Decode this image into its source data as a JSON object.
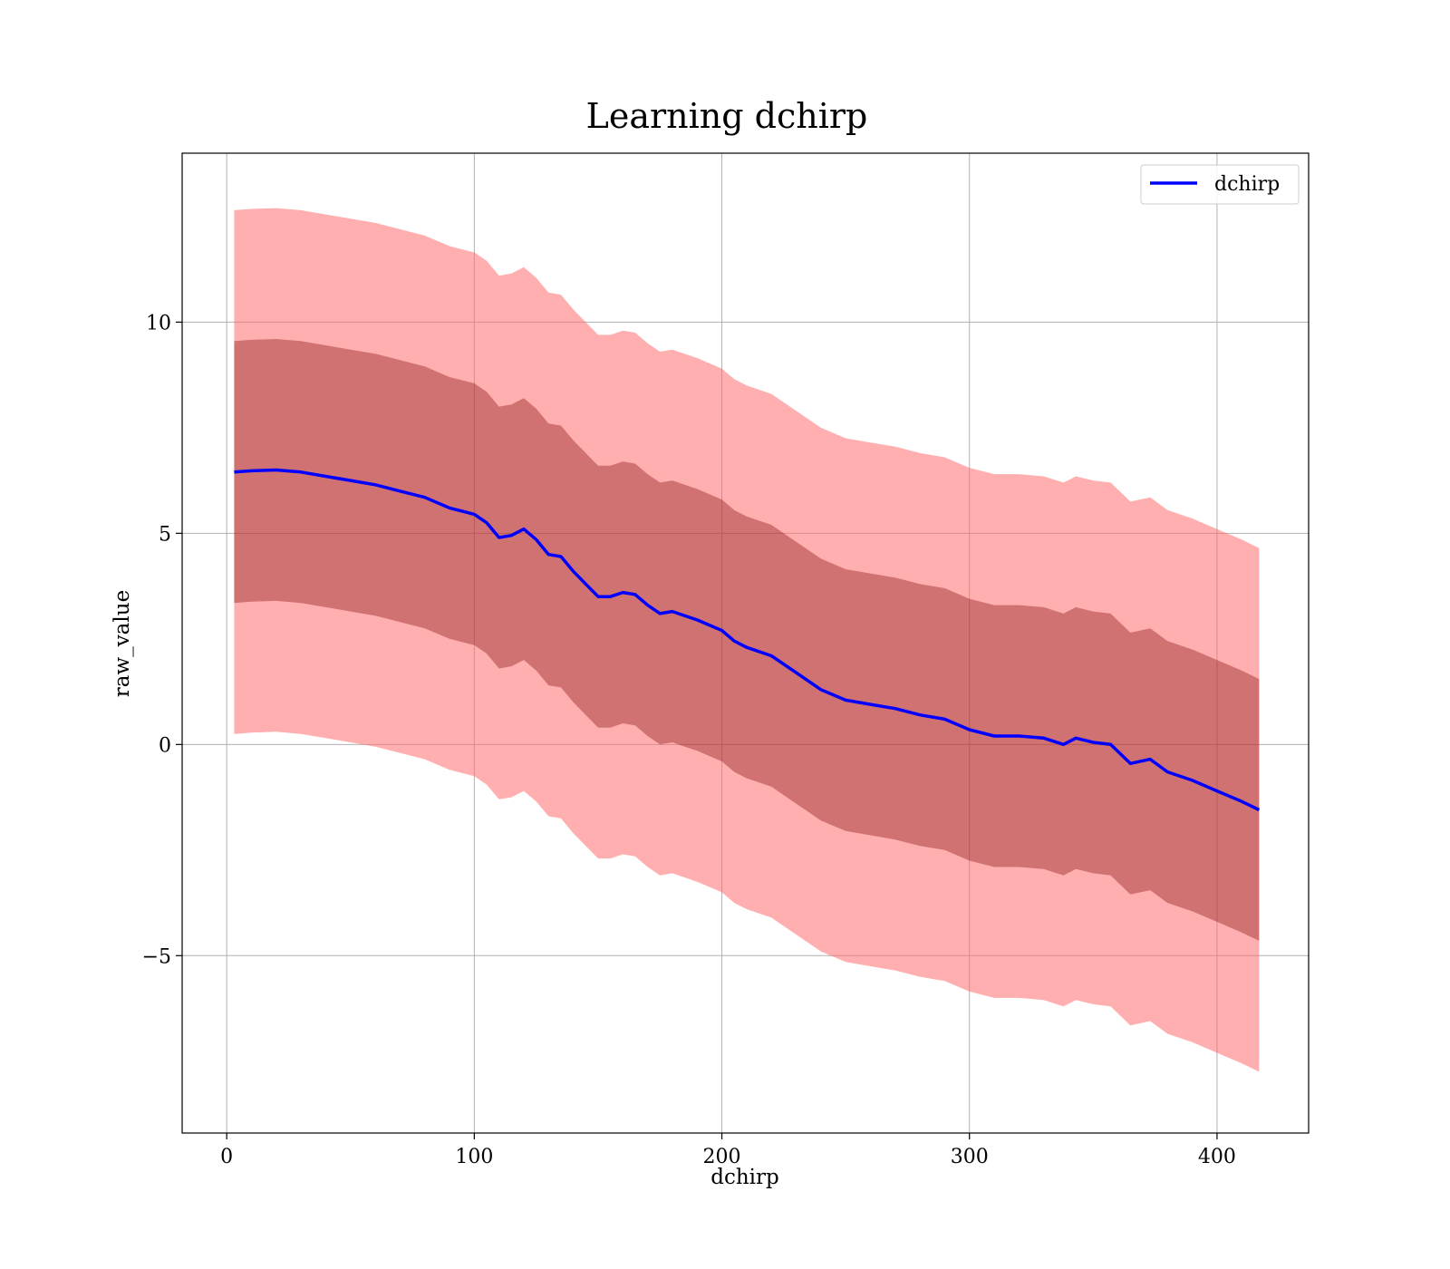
{
  "chart_data": {
    "type": "line",
    "title": "Learning dchirp",
    "xlabel": "dchirp",
    "ylabel": "raw_value",
    "xlim": [
      -18,
      437
    ],
    "ylim": [
      -9.2,
      14.0
    ],
    "xticks": [
      0,
      100,
      200,
      300,
      400
    ],
    "xtick_labels": [
      "0",
      "100",
      "200",
      "300",
      "400"
    ],
    "yticks": [
      -5,
      0,
      5,
      10
    ],
    "ytick_labels": [
      "−5",
      "0",
      "5",
      "10"
    ],
    "grid": true,
    "legend_position": "upper right",
    "band_std_multiplier": [
      1,
      2
    ],
    "colors": {
      "mean_line": "#0000ff",
      "inner_band": "#7a0000",
      "outer_band": "#ff6d6d",
      "grid": "#b0b0b0"
    },
    "series": [
      {
        "name": "dchirp",
        "x": [
          3,
          10,
          20,
          30,
          40,
          50,
          60,
          70,
          80,
          90,
          100,
          105,
          110,
          115,
          120,
          125,
          130,
          135,
          140,
          145,
          150,
          155,
          160,
          165,
          170,
          175,
          180,
          190,
          200,
          205,
          210,
          220,
          230,
          240,
          250,
          260,
          270,
          280,
          290,
          300,
          310,
          320,
          330,
          338,
          343,
          350,
          357,
          365,
          373,
          380,
          390,
          400,
          410,
          417
        ],
        "mean": [
          6.45,
          6.48,
          6.5,
          6.45,
          6.35,
          6.25,
          6.15,
          6.0,
          5.85,
          5.6,
          5.45,
          5.25,
          4.9,
          4.95,
          5.1,
          4.85,
          4.5,
          4.45,
          4.1,
          3.8,
          3.5,
          3.5,
          3.6,
          3.55,
          3.3,
          3.1,
          3.15,
          2.95,
          2.7,
          2.45,
          2.3,
          2.1,
          1.7,
          1.3,
          1.05,
          0.95,
          0.85,
          0.7,
          0.6,
          0.35,
          0.2,
          0.2,
          0.15,
          0.0,
          0.15,
          0.05,
          0.0,
          -0.45,
          -0.35,
          -0.65,
          -0.85,
          -1.1,
          -1.35,
          -1.55
        ],
        "std": [
          3.1,
          3.1,
          3.1,
          3.1,
          3.1,
          3.1,
          3.1,
          3.1,
          3.1,
          3.1,
          3.1,
          3.1,
          3.1,
          3.1,
          3.1,
          3.1,
          3.1,
          3.1,
          3.1,
          3.1,
          3.1,
          3.1,
          3.1,
          3.1,
          3.1,
          3.1,
          3.1,
          3.1,
          3.1,
          3.1,
          3.1,
          3.1,
          3.1,
          3.1,
          3.1,
          3.1,
          3.1,
          3.1,
          3.1,
          3.1,
          3.1,
          3.1,
          3.1,
          3.1,
          3.1,
          3.1,
          3.1,
          3.1,
          3.1,
          3.1,
          3.1,
          3.1,
          3.1,
          3.1
        ]
      }
    ]
  }
}
